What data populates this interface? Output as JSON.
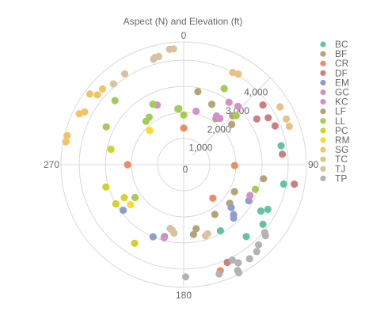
{
  "chart_data": {
    "type": "scatter",
    "title": "Aspect (N) and Elevation (ft)",
    "angular_axis": {
      "unit": "degrees",
      "direction": "clockwise",
      "zero": "top",
      "ticks": [
        0,
        90,
        180,
        270
      ],
      "tick_labels": [
        "0",
        "90",
        "180",
        "270"
      ]
    },
    "radial_axis": {
      "range": [
        0,
        4700
      ],
      "ticks": [
        1000,
        2000,
        3000,
        4000
      ],
      "tick_labels": [
        "1,000",
        "2,000",
        "3,000",
        "4,000"
      ],
      "tick_angle": 45,
      "center_label": "0"
    },
    "legend": {
      "placement": "right"
    },
    "series": [
      {
        "name": "BC",
        "color": "#66c2a5",
        "points": [
          [
            79,
            3800
          ],
          [
            101,
            3900
          ],
          [
            118,
            3650
          ],
          [
            121,
            3450
          ],
          [
            127,
            3800
          ],
          [
            139,
            3650
          ],
          [
            151,
            2900
          ]
        ]
      },
      {
        "name": "BF",
        "color": "#b5a37a",
        "points": [
          [
            11,
            2850
          ],
          [
            35,
            2150
          ],
          [
            45,
            2650
          ],
          [
            50,
            2400
          ],
          [
            100,
            3100
          ],
          [
            118,
            2200
          ],
          [
            130,
            2300
          ],
          [
            148,
            2250
          ],
          [
            169,
            2500
          ],
          [
            172,
            2700
          ]
        ]
      },
      {
        "name": "CR",
        "color": "#f08a63",
        "points": [
          [
            0,
            1400
          ],
          [
            91,
            1950
          ],
          [
            139,
            1700
          ],
          [
            161,
            4300
          ],
          [
            270,
            2150
          ]
        ]
      },
      {
        "name": "DF",
        "color": "#c9807f",
        "points": [
          [
            53,
            3800
          ],
          [
            58,
            3300
          ],
          [
            61,
            3700
          ],
          [
            67,
            3800
          ],
          [
            84,
            3800
          ],
          [
            100,
            4300
          ],
          [
            156,
            4100
          ]
        ]
      },
      {
        "name": "EM",
        "color": "#8d9ecd",
        "points": [
          [
            119,
            2850
          ],
          [
            132,
            2450
          ],
          [
            135,
            2700
          ],
          [
            137,
            2800
          ],
          [
            195,
            2850
          ],
          [
            203,
            3000
          ],
          [
            233,
            2900
          ]
        ]
      },
      {
        "name": "GC",
        "color": "#d690c8",
        "points": [
          [
            13,
            2100
          ],
          [
            38,
            2250
          ],
          [
            43,
            3050
          ],
          [
            115,
            2800
          ],
          [
            195,
            2900
          ]
        ]
      },
      {
        "name": "KC",
        "color": "#d98ec7",
        "points": [
          [
            34,
            2250
          ],
          [
            36,
            2950
          ],
          [
            336,
            2500
          ]
        ]
      },
      {
        "name": "LF",
        "color": "#b5a37a",
        "points": [
          [
            25,
            2550
          ]
        ]
      },
      {
        "name": "LL",
        "color": "#a3cc52",
        "points": [
          [
            0,
            1900
          ],
          [
            28,
            3300
          ],
          [
            47,
            2750
          ],
          [
            109,
            2900
          ],
          [
            236,
            2250
          ],
          [
            296,
            3300
          ],
          [
            313,
            3600
          ],
          [
            319,
            2200
          ],
          [
            324,
            2250
          ],
          [
            333,
            2600
          ],
          [
            354,
            2150
          ],
          [
            355,
            2150
          ]
        ]
      },
      {
        "name": "PC",
        "color": "#d4d128",
        "points": [
          [
            212,
            3550
          ],
          [
            240,
            3000
          ],
          [
            254,
            3100
          ],
          [
            241,
            2600
          ],
          [
            282,
            2850
          ]
        ]
      },
      {
        "name": "RM",
        "color": "#ffd92f",
        "points": [
          [
            233,
            2550
          ],
          [
            315,
            1850
          ]
        ]
      },
      {
        "name": "SG",
        "color": "#f2c466",
        "points": [
          [
            281,
            4600
          ],
          [
            284,
            4600
          ],
          [
            296,
            4450
          ],
          [
            298,
            4300
          ],
          [
            307,
            4500
          ],
          [
            309,
            4250
          ],
          [
            313,
            4250
          ]
        ]
      },
      {
        "name": "TC",
        "color": "#e8c184",
        "points": [
          [
            28,
            4000
          ],
          [
            31,
            4050
          ],
          [
            59,
            4300
          ],
          [
            66,
            4300
          ],
          [
            70,
            4300
          ]
        ]
      },
      {
        "name": "TJ",
        "color": "#d9c2a0",
        "points": [
          [
            344,
            4200
          ],
          [
            345,
            4250
          ],
          [
            347,
            4250
          ],
          [
            353,
            4450
          ],
          [
            355,
            4450
          ],
          [
            327,
            4150
          ],
          [
            319,
            4100
          ],
          [
            161,
            2800
          ],
          [
            163,
            2850
          ],
          [
            188,
            2650
          ],
          [
            190,
            2550
          ],
          [
            192,
            2500
          ]
        ]
      },
      {
        "name": "TP",
        "color": "#b3b3b3",
        "points": [
          [
            130,
            4050
          ],
          [
            131,
            4150
          ],
          [
            137,
            4200
          ],
          [
            140,
            4350
          ],
          [
            145,
            4400
          ],
          [
            151,
            4300
          ],
          [
            153,
            4550
          ],
          [
            153,
            4650
          ],
          [
            153,
            4100
          ],
          [
            162,
            4400
          ],
          [
            179,
            4300
          ]
        ]
      }
    ]
  }
}
